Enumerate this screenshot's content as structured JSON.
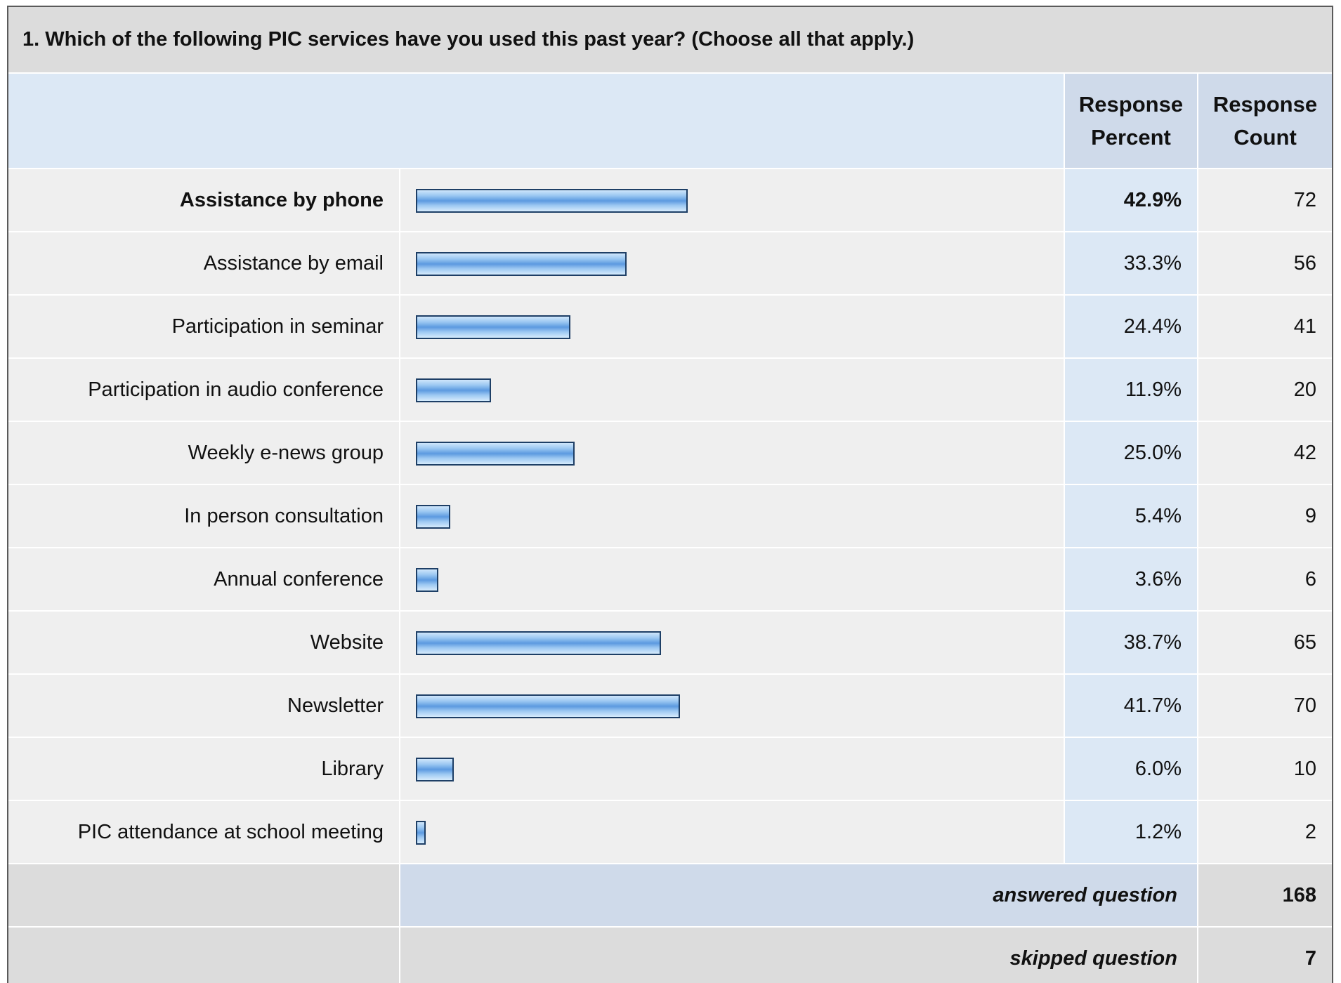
{
  "question": "1. Which of the following PIC services have you used this past year? (Choose all that apply.)",
  "headers": {
    "percent_line1": "Response",
    "percent_line2": "Percent",
    "count_line1": "Response",
    "count_line2": "Count"
  },
  "rows": [
    {
      "label": "Assistance by phone",
      "percent": "42.9%",
      "count": "72"
    },
    {
      "label": "Assistance by email",
      "percent": "33.3%",
      "count": "56"
    },
    {
      "label": "Participation in seminar",
      "percent": "24.4%",
      "count": "41"
    },
    {
      "label": "Participation in audio conference",
      "percent": "11.9%",
      "count": "20"
    },
    {
      "label": "Weekly e-news group",
      "percent": "25.0%",
      "count": "42"
    },
    {
      "label": "In person consultation",
      "percent": "5.4%",
      "count": "9"
    },
    {
      "label": "Annual conference",
      "percent": "3.6%",
      "count": "6"
    },
    {
      "label": "Website",
      "percent": "38.7%",
      "count": "65"
    },
    {
      "label": "Newsletter",
      "percent": "41.7%",
      "count": "70"
    },
    {
      "label": "Library",
      "percent": "6.0%",
      "count": "10"
    },
    {
      "label": "PIC attendance at school meeting",
      "percent": "1.2%",
      "count": "2"
    }
  ],
  "footer": {
    "answered_label": "answered question",
    "answered_count": "168",
    "skipped_label": "skipped question",
    "skipped_count": "7"
  },
  "chart_data": {
    "type": "bar",
    "orientation": "horizontal",
    "categories": [
      "Assistance by phone",
      "Assistance by email",
      "Participation in seminar",
      "Participation in audio conference",
      "Weekly e-news group",
      "In person consultation",
      "Annual conference",
      "Website",
      "Newsletter",
      "Library",
      "PIC attendance at school meeting"
    ],
    "values": [
      42.9,
      33.3,
      24.4,
      11.9,
      25.0,
      5.4,
      3.6,
      38.7,
      41.7,
      6.0,
      1.2
    ],
    "counts": [
      72,
      56,
      41,
      20,
      42,
      9,
      6,
      65,
      70,
      10,
      2
    ],
    "xlim": [
      0,
      100
    ],
    "bar_color": "#6fa8e8",
    "bar_border_color": "#1e3f66",
    "highlight_row": 0
  }
}
